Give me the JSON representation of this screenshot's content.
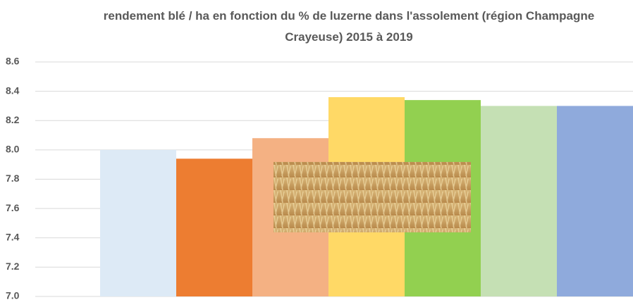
{
  "chart_data": {
    "type": "bar",
    "title": "rendement blé / ha en fonction du % de luzerne dans l'assolement (région Champagne Crayeuse) 2015 à 2019",
    "categories": [
      null,
      null,
      null,
      null,
      null,
      null,
      null
    ],
    "values": [
      8.0,
      7.94,
      8.08,
      8.36,
      8.34,
      8.3,
      8.3
    ],
    "colors": [
      "#ddeaf6",
      "#ed7d31",
      "#f4b183",
      "#ffd966",
      "#92d050",
      "#c5e0b4",
      "#8faadc"
    ],
    "ylim": [
      7.0,
      8.6
    ],
    "yticks": [
      {
        "value": 7.0,
        "label": "7.0"
      },
      7.2,
      7.4,
      7.6,
      7.8,
      {
        "value": 8.0,
        "label": "8.0"
      },
      8.2,
      8.4,
      8.6
    ],
    "grid": true
  }
}
